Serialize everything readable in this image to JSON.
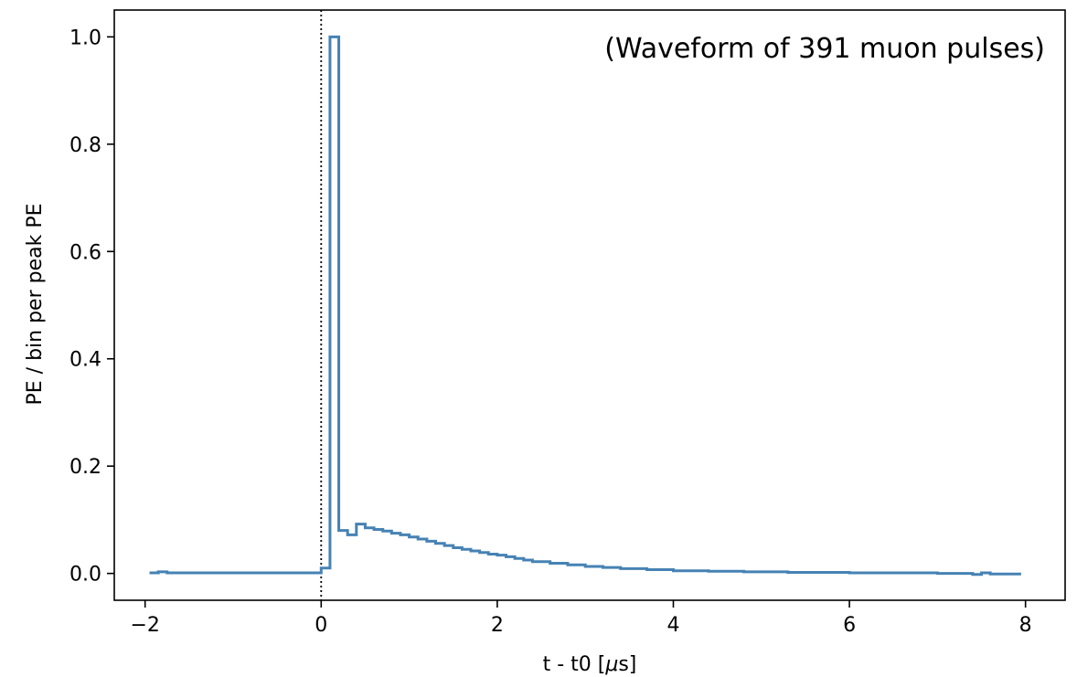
{
  "chart_data": {
    "type": "line",
    "step": true,
    "xlabel": "t - t0 [$\\mu$s]",
    "xlabel_text": "t - t0 [",
    "xlabel_mu": "μ",
    "xlabel_tail": "s]",
    "ylabel": "PE / bin per peak PE",
    "annotation": "(Waveform of 391 muon pulses)",
    "xlim": [
      -2.35,
      8.45
    ],
    "ylim": [
      -0.05,
      1.05
    ],
    "x_ticks": [
      -2,
      0,
      2,
      4,
      6,
      8
    ],
    "x_tick_labels": [
      "−2",
      "0",
      "2",
      "4",
      "6",
      "8"
    ],
    "y_ticks": [
      0.0,
      0.2,
      0.4,
      0.6,
      0.8,
      1.0
    ],
    "y_tick_labels": [
      "0.0",
      "0.2",
      "0.4",
      "0.6",
      "0.8",
      "1.0"
    ],
    "vline_x": 0,
    "series_color": "#4682b4",
    "series": [
      {
        "x": [
          -1.95,
          -1.85,
          -1.75,
          -1.55,
          0.0,
          0.1,
          0.2,
          0.3,
          0.4,
          0.5,
          0.6,
          0.7,
          0.8,
          0.9,
          1.0,
          1.1,
          1.2,
          1.3,
          1.4,
          1.5,
          1.6,
          1.7,
          1.8,
          1.9,
          2.0,
          2.1,
          2.2,
          2.3,
          2.4,
          2.6,
          2.8,
          3.0,
          3.2,
          3.4,
          3.7,
          4.0,
          4.4,
          4.8,
          5.3,
          6.0,
          7.0,
          7.4,
          7.5,
          7.6,
          7.7,
          7.95
        ],
        "y": [
          0.001,
          0.003,
          0.001,
          0.001,
          0.01,
          1.0,
          0.08,
          0.072,
          0.092,
          0.085,
          0.082,
          0.079,
          0.075,
          0.072,
          0.068,
          0.064,
          0.06,
          0.056,
          0.052,
          0.048,
          0.045,
          0.042,
          0.039,
          0.036,
          0.034,
          0.031,
          0.028,
          0.025,
          0.022,
          0.019,
          0.016,
          0.013,
          0.011,
          0.009,
          0.007,
          0.005,
          0.004,
          0.003,
          0.002,
          0.001,
          0.0,
          -0.002,
          0.001,
          -0.001,
          -0.001,
          -0.001
        ]
      }
    ]
  }
}
